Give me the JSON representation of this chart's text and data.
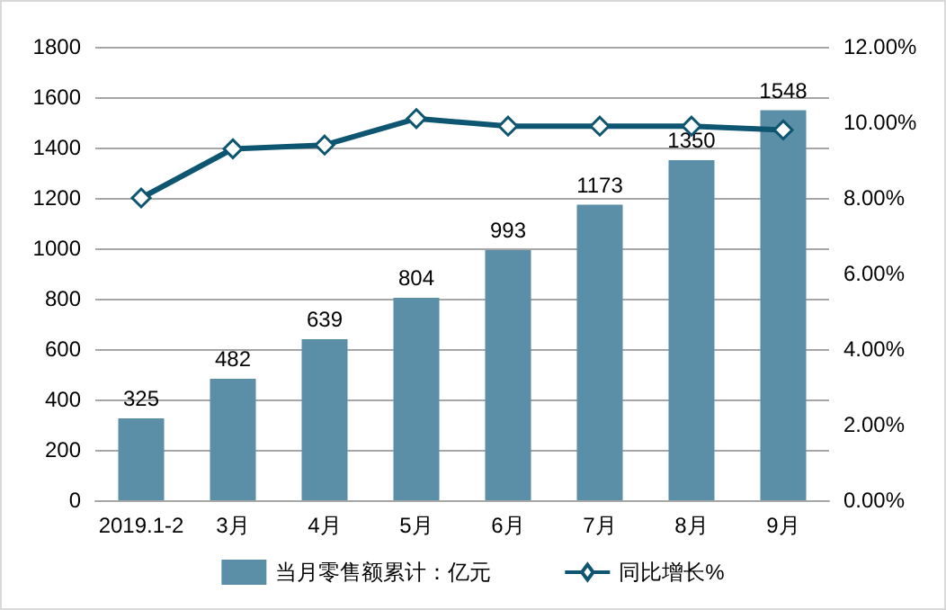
{
  "chart_data": {
    "type": "bar",
    "categories": [
      "2019.1-2",
      "3月",
      "4月",
      "5月",
      "6月",
      "7月",
      "8月",
      "9月"
    ],
    "series": [
      {
        "name": "当月零售额累计：亿元",
        "color": "#5b8fa8",
        "values": [
          325,
          482,
          639,
          804,
          993,
          1173,
          1350,
          1548
        ],
        "data_labels": true
      },
      {
        "name": "同比增长%",
        "type": "line",
        "axis": "y2",
        "color": "#0d5570",
        "marker": "diamond",
        "values": [
          8.0,
          9.3,
          9.4,
          10.1,
          9.9,
          9.9,
          9.9,
          9.8
        ]
      }
    ],
    "ylim": [
      0,
      1800
    ],
    "yticks": [
      0,
      200,
      400,
      600,
      800,
      1000,
      1200,
      1400,
      1600,
      1800
    ],
    "y2lim": [
      0,
      12
    ],
    "y2ticks": [
      {
        "value": 0,
        "label": "0.00%"
      },
      {
        "value": 2,
        "label": "2.00%"
      },
      {
        "value": 4,
        "label": "4.00%"
      },
      {
        "value": 6,
        "label": "6.00%"
      },
      {
        "value": 8,
        "label": "8.00%"
      },
      {
        "value": 10,
        "label": "10.00%"
      },
      {
        "value": 12,
        "label": "12.00%"
      }
    ],
    "grid": "y",
    "legend": "bottom"
  }
}
